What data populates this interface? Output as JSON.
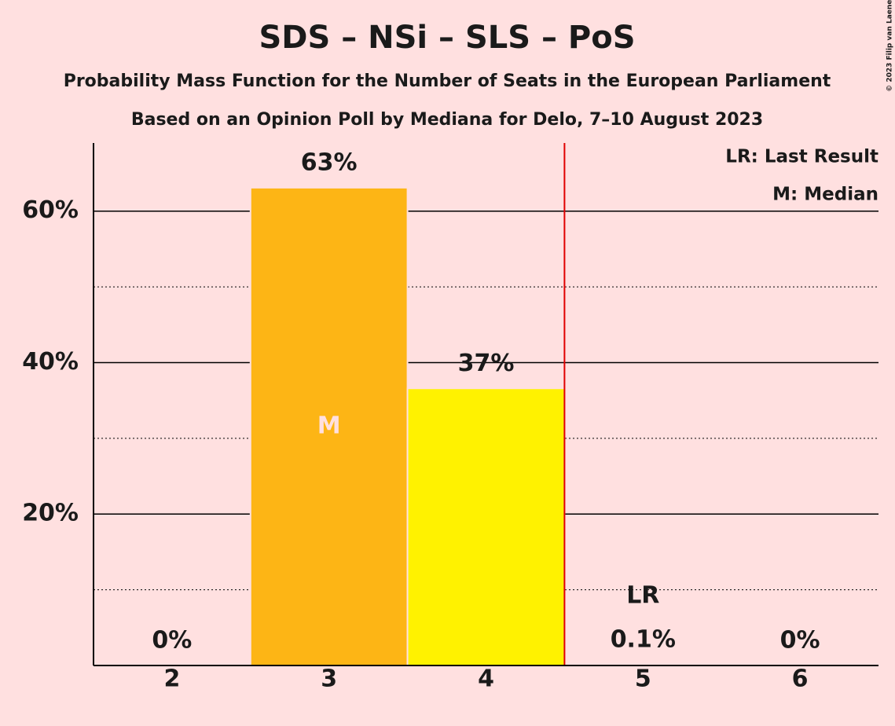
{
  "chart_data": {
    "type": "bar",
    "title": "SDS – NSi – SLS – PoS",
    "subtitles": [
      "Probability Mass Function for the Number of Seats in the European Parliament",
      "Based on an Opinion Poll by Mediana for Delo, 7–10 August 2023"
    ],
    "categories": [
      "2",
      "3",
      "4",
      "5",
      "6"
    ],
    "values": [
      0,
      63.1,
      36.6,
      0.1,
      0
    ],
    "value_labels": [
      "0%",
      "63%",
      "37%",
      "0.1%",
      "0%"
    ],
    "colors": [
      "#fdb515",
      "#fdb515",
      "#fff200",
      "#fff200",
      "#fff200"
    ],
    "ylim": [
      0,
      69
    ],
    "yticks": [
      {
        "value": 20,
        "label": "20%"
      },
      {
        "value": 40,
        "label": "40%"
      },
      {
        "value": 60,
        "label": "60%"
      }
    ],
    "minor_yticks": [
      10,
      30,
      50
    ],
    "grid": true,
    "last_result": {
      "label": "LR",
      "category": 3,
      "color": "#e00000"
    },
    "median": {
      "label": "M",
      "category": 1
    },
    "legend": [
      "LR: Last Result",
      "M: Median"
    ],
    "credit": "© 2023 Filip van Laenen"
  }
}
